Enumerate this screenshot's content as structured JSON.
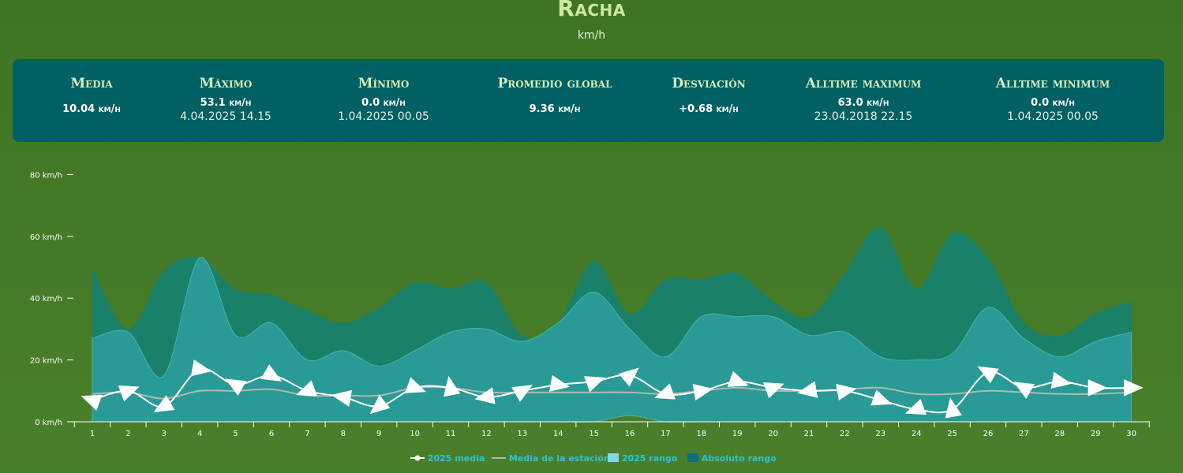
{
  "header": {
    "title": "Racha",
    "unit": "km/h"
  },
  "stats": [
    {
      "label": "Media",
      "value": "10.04 km/h",
      "datetime": ""
    },
    {
      "label": "Máximo",
      "value": "53.1 km/h",
      "datetime": "4.04.2025 14.15"
    },
    {
      "label": "Mínimo",
      "value": "0.0 km/h",
      "datetime": "1.04.2025 00.05"
    },
    {
      "label": "Promedio global",
      "value": "9.36 km/h",
      "datetime": ""
    },
    {
      "label": "Desviación",
      "value": "+0.68 km/h",
      "datetime": ""
    },
    {
      "label": "Alltime maximum",
      "value": "63.0 km/h",
      "datetime": "23.04.2018 22.15"
    },
    {
      "label": "Alltime minimum",
      "value": "0.0 km/h",
      "datetime": "1.04.2025 00.05"
    }
  ],
  "colors": {
    "absolute_range": "#1a8068",
    "range_2025": "#2a9a96",
    "media_2025": "#ffffff",
    "station_mean": "#b0b8b0",
    "panel": "#016064"
  },
  "chart_data": {
    "type": "area",
    "x": [
      1,
      2,
      3,
      4,
      5,
      6,
      7,
      8,
      9,
      10,
      11,
      12,
      13,
      14,
      15,
      16,
      17,
      18,
      19,
      20,
      21,
      22,
      23,
      24,
      25,
      26,
      27,
      28,
      29,
      30
    ],
    "ylim": [
      0,
      80
    ],
    "y_ticks": [
      "0 km/h",
      "20 km/h",
      "40 km/h",
      "60 km/h",
      "80 km/h"
    ],
    "y_tick_values": [
      0,
      20,
      40,
      60,
      80
    ],
    "grid": false,
    "legend_position": "bottom",
    "series": [
      {
        "name": "Absoluto rango",
        "type": "arearange",
        "low": [
          0,
          0,
          0,
          0,
          0,
          0,
          0,
          0,
          0,
          0,
          0,
          0,
          0,
          0,
          0,
          2,
          0,
          0,
          0,
          0,
          0,
          0,
          0,
          0,
          0,
          0,
          0,
          0,
          0,
          0
        ],
        "high": [
          50,
          30,
          49,
          53,
          43,
          41,
          36,
          32,
          37,
          45,
          43,
          45,
          28,
          32,
          52,
          35,
          46,
          46,
          48,
          39,
          34,
          48,
          63,
          43,
          61,
          53,
          32,
          28,
          35,
          39
        ]
      },
      {
        "name": "2025 rango",
        "type": "arearange",
        "low": [
          0,
          0,
          0,
          0,
          0,
          0,
          0,
          0,
          0,
          0,
          0,
          0,
          0,
          0,
          0,
          2,
          0,
          0,
          0,
          0,
          0,
          0,
          0,
          0,
          0,
          0,
          0,
          0,
          0,
          0
        ],
        "high": [
          27,
          29,
          15,
          53,
          28,
          32,
          20,
          23,
          18,
          23,
          29,
          30,
          26,
          32,
          42,
          30,
          21,
          34,
          34,
          34,
          28,
          29,
          21,
          20,
          22,
          37,
          27,
          21,
          26,
          29
        ]
      },
      {
        "name": "2025 media",
        "type": "line",
        "values": [
          7,
          10,
          5,
          17,
          12,
          15,
          10,
          8,
          5,
          11,
          11,
          8,
          10,
          12,
          13,
          15,
          9,
          10,
          13,
          11,
          10,
          10,
          7,
          4,
          4,
          16,
          11,
          13,
          11,
          11
        ]
      },
      {
        "name": "Media de la estación",
        "type": "line",
        "values": [
          9,
          9.5,
          7.5,
          10,
          10,
          10.5,
          8.5,
          8.5,
          8.5,
          11,
          11,
          9.5,
          9.5,
          9.5,
          9.5,
          9.5,
          9,
          10,
          11,
          10,
          10,
          10.5,
          11,
          9,
          9,
          10,
          9.5,
          9,
          9,
          9.5
        ]
      }
    ]
  }
}
